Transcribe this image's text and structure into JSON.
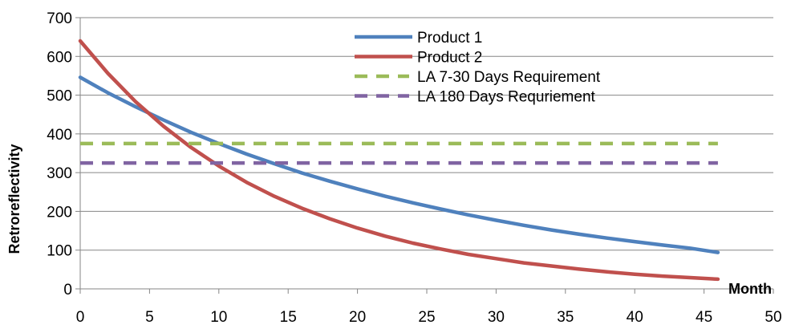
{
  "chart_data": {
    "type": "line",
    "title": "",
    "xlabel": "Month",
    "ylabel": "Retroreflectivity",
    "xlim": [
      0,
      50
    ],
    "ylim": [
      0,
      700
    ],
    "x_ticks": [
      0,
      5,
      10,
      15,
      20,
      25,
      30,
      35,
      40,
      45,
      50
    ],
    "y_ticks": [
      0,
      100,
      200,
      300,
      400,
      500,
      600,
      700
    ],
    "grid": "horizontal",
    "legend_position": "top-center, inside plot",
    "series": [
      {
        "name": "Product 1",
        "color": "#4F81BD",
        "style": "solid",
        "x": [
          0,
          2,
          4,
          6,
          8,
          10,
          12,
          14,
          16,
          18,
          20,
          22,
          24,
          26,
          28,
          30,
          32,
          34,
          36,
          38,
          40,
          42,
          44,
          46
        ],
        "y": [
          546,
          506,
          470,
          436,
          404,
          375,
          348,
          323,
          299,
          278,
          258,
          239,
          222,
          206,
          191,
          177,
          164,
          152,
          141,
          131,
          122,
          113,
          105,
          94
        ]
      },
      {
        "name": "Product 2",
        "color": "#C0504D",
        "style": "solid",
        "x": [
          0,
          2,
          4,
          6,
          8,
          10,
          12,
          14,
          16,
          18,
          20,
          22,
          24,
          26,
          28,
          30,
          32,
          34,
          36,
          38,
          40,
          42,
          44,
          46
        ],
        "y": [
          640,
          556,
          483,
          420,
          365,
          317,
          275,
          239,
          208,
          181,
          157,
          136,
          118,
          103,
          89,
          78,
          67,
          59,
          51,
          44,
          38,
          33,
          29,
          25
        ]
      },
      {
        "name": "LA 7-30 Days Requirement",
        "color": "#9BBB59",
        "style": "dashed",
        "x": [
          0,
          46
        ],
        "y": [
          375,
          375
        ]
      },
      {
        "name": "LA 180 Days Requriement",
        "color": "#8064A2",
        "style": "dashed",
        "x": [
          0,
          46
        ],
        "y": [
          325,
          325
        ]
      }
    ]
  }
}
